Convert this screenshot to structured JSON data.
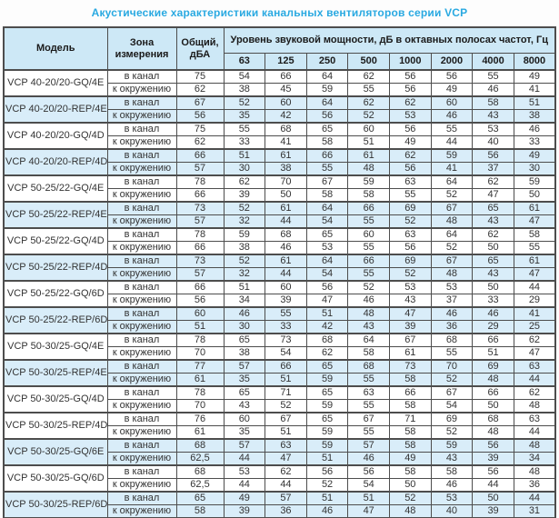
{
  "title": "Акустические характеристики канальных вентиляторов  серии VCP",
  "colors": {
    "title_text": "#29a9e1",
    "header_bg": "#cde8f6",
    "shaded_row_bg": "#d9edf9",
    "border": "#4d4d4d",
    "body_text": "#333333"
  },
  "table": {
    "headers": {
      "model": "Модель",
      "zone": "Зона измерения",
      "total": "Общий, дБА",
      "group": "Уровень звуковой мощности, дБ в октавных полосах частот, Гц",
      "frequencies": [
        "63",
        "125",
        "250",
        "500",
        "1000",
        "2000",
        "4000",
        "8000"
      ]
    },
    "zone_labels": [
      "в канал",
      "к окружению"
    ],
    "models": [
      {
        "name": "VCP 40-20/20-GQ/4E",
        "shaded": false,
        "rows": [
          {
            "zone": "в канал",
            "total": "75",
            "levels": [
              "54",
              "66",
              "64",
              "62",
              "56",
              "56",
              "55",
              "49"
            ]
          },
          {
            "zone": "к окружению",
            "total": "62",
            "levels": [
              "38",
              "45",
              "59",
              "55",
              "56",
              "49",
              "46",
              "41"
            ]
          }
        ]
      },
      {
        "name": "VCP 40-20/20-REP/4E",
        "shaded": true,
        "rows": [
          {
            "zone": "в канал",
            "total": "67",
            "levels": [
              "52",
              "60",
              "64",
              "62",
              "62",
              "60",
              "58",
              "51"
            ]
          },
          {
            "zone": "к окружению",
            "total": "56",
            "levels": [
              "35",
              "42",
              "56",
              "52",
              "53",
              "46",
              "43",
              "38"
            ]
          }
        ]
      },
      {
        "name": "VCP 40-20/20-GQ/4D",
        "shaded": false,
        "rows": [
          {
            "zone": "в канал",
            "total": "75",
            "levels": [
              "55",
              "68",
              "65",
              "60",
              "56",
              "55",
              "53",
              "46"
            ]
          },
          {
            "zone": "к окружению",
            "total": "62",
            "levels": [
              "33",
              "41",
              "58",
              "51",
              "49",
              "44",
              "40",
              "33"
            ]
          }
        ]
      },
      {
        "name": "VCP 40-20/20-REP/4D",
        "shaded": true,
        "rows": [
          {
            "zone": "в канал",
            "total": "66",
            "levels": [
              "51",
              "61",
              "66",
              "61",
              "62",
              "59",
              "56",
              "49"
            ]
          },
          {
            "zone": "к окружению",
            "total": "57",
            "levels": [
              "30",
              "38",
              "55",
              "48",
              "56",
              "41",
              "37",
              "30"
            ]
          }
        ]
      },
      {
        "name": "VCP 50-25/22-GQ/4E",
        "shaded": false,
        "rows": [
          {
            "zone": "в канал",
            "total": "78",
            "levels": [
              "62",
              "70",
              "67",
              "59",
              "63",
              "64",
              "62",
              "59"
            ]
          },
          {
            "zone": "к окружению",
            "total": "66",
            "levels": [
              "39",
              "50",
              "58",
              "58",
              "55",
              "52",
              "47",
              "50"
            ]
          }
        ]
      },
      {
        "name": "VCP 50-25/22-REP/4E",
        "shaded": true,
        "rows": [
          {
            "zone": "в канал",
            "total": "73",
            "levels": [
              "52",
              "61",
              "64",
              "66",
              "69",
              "67",
              "65",
              "61"
            ]
          },
          {
            "zone": "к окружению",
            "total": "57",
            "levels": [
              "32",
              "44",
              "54",
              "55",
              "52",
              "48",
              "43",
              "47"
            ]
          }
        ]
      },
      {
        "name": "VCP 50-25/22-GQ/4D",
        "shaded": false,
        "rows": [
          {
            "zone": "в канал",
            "total": "78",
            "levels": [
              "59",
              "68",
              "65",
              "60",
              "63",
              "64",
              "62",
              "58"
            ]
          },
          {
            "zone": "к окружению",
            "total": "66",
            "levels": [
              "38",
              "46",
              "53",
              "55",
              "56",
              "52",
              "50",
              "55"
            ]
          }
        ]
      },
      {
        "name": "VCP 50-25/22-REP/4D",
        "shaded": true,
        "rows": [
          {
            "zone": "в канал",
            "total": "73",
            "levels": [
              "52",
              "61",
              "64",
              "66",
              "69",
              "67",
              "65",
              "61"
            ]
          },
          {
            "zone": "к окружению",
            "total": "57",
            "levels": [
              "32",
              "44",
              "54",
              "55",
              "52",
              "48",
              "43",
              "47"
            ]
          }
        ]
      },
      {
        "name": "VCP 50-25/22-GQ/6D",
        "shaded": false,
        "rows": [
          {
            "zone": "в канал",
            "total": "66",
            "levels": [
              "51",
              "60",
              "56",
              "52",
              "53",
              "53",
              "50",
              "44"
            ]
          },
          {
            "zone": "к окружению",
            "total": "56",
            "levels": [
              "34",
              "39",
              "47",
              "46",
              "43",
              "37",
              "33",
              "29"
            ]
          }
        ]
      },
      {
        "name": "VCP 50-25/22-REP/6D",
        "shaded": true,
        "rows": [
          {
            "zone": "в канал",
            "total": "60",
            "levels": [
              "46",
              "55",
              "51",
              "48",
              "47",
              "46",
              "46",
              "41"
            ]
          },
          {
            "zone": "к окружению",
            "total": "51",
            "levels": [
              "30",
              "33",
              "42",
              "43",
              "39",
              "36",
              "29",
              "25"
            ]
          }
        ]
      },
      {
        "name": "VCP 50-30/25-GQ/4E",
        "shaded": false,
        "rows": [
          {
            "zone": "в канал",
            "total": "78",
            "levels": [
              "65",
              "73",
              "68",
              "64",
              "67",
              "68",
              "66",
              "62"
            ]
          },
          {
            "zone": "к окружению",
            "total": "70",
            "levels": [
              "38",
              "54",
              "62",
              "58",
              "61",
              "55",
              "51",
              "47"
            ]
          }
        ]
      },
      {
        "name": "VCP 50-30/25-REP/4E",
        "shaded": true,
        "rows": [
          {
            "zone": "в канал",
            "total": "77",
            "levels": [
              "57",
              "66",
              "65",
              "68",
              "73",
              "70",
              "69",
              "63"
            ]
          },
          {
            "zone": "к окружению",
            "total": "61",
            "levels": [
              "35",
              "51",
              "59",
              "55",
              "58",
              "52",
              "48",
              "44"
            ]
          }
        ]
      },
      {
        "name": "VCP 50-30/25-GQ/4D",
        "shaded": false,
        "rows": [
          {
            "zone": "в канал",
            "total": "78",
            "levels": [
              "65",
              "71",
              "65",
              "63",
              "66",
              "67",
              "66",
              "62"
            ]
          },
          {
            "zone": "к окружению",
            "total": "70",
            "levels": [
              "43",
              "52",
              "59",
              "55",
              "58",
              "54",
              "50",
              "48"
            ]
          }
        ]
      },
      {
        "name": "VCP 50-30/25-REP/4D",
        "shaded": false,
        "rows": [
          {
            "zone": "в канал",
            "total": "76",
            "levels": [
              "60",
              "67",
              "65",
              "67",
              "71",
              "69",
              "68",
              "63"
            ]
          },
          {
            "zone": "к окружению",
            "total": "61",
            "levels": [
              "35",
              "51",
              "59",
              "55",
              "58",
              "52",
              "48",
              "44"
            ]
          }
        ]
      },
      {
        "name": "VCP 50-30/25-GQ/6E",
        "shaded": true,
        "rows": [
          {
            "zone": "в канал",
            "total": "68",
            "levels": [
              "57",
              "63",
              "59",
              "57",
              "58",
              "59",
              "56",
              "48"
            ]
          },
          {
            "zone": "к окружению",
            "total": "62,5",
            "levels": [
              "44",
              "47",
              "51",
              "46",
              "49",
              "43",
              "39",
              "34"
            ]
          }
        ]
      },
      {
        "name": "VCP 50-30/25-GQ/6D",
        "shaded": false,
        "rows": [
          {
            "zone": "в канал",
            "total": "68",
            "levels": [
              "53",
              "62",
              "56",
              "56",
              "58",
              "58",
              "56",
              "48"
            ]
          },
          {
            "zone": "к окружению",
            "total": "62,5",
            "levels": [
              "44",
              "44",
              "52",
              "54",
              "50",
              "46",
              "44",
              "36"
            ]
          }
        ]
      },
      {
        "name": "VCP 50-30/25-REP/6D",
        "shaded": true,
        "rows": [
          {
            "zone": "в канал",
            "total": "65",
            "levels": [
              "49",
              "57",
              "51",
              "51",
              "52",
              "53",
              "50",
              "44"
            ]
          },
          {
            "zone": "к окружению",
            "total": "58",
            "levels": [
              "39",
              "36",
              "46",
              "47",
              "48",
              "40",
              "39",
              "31"
            ]
          }
        ]
      }
    ]
  }
}
